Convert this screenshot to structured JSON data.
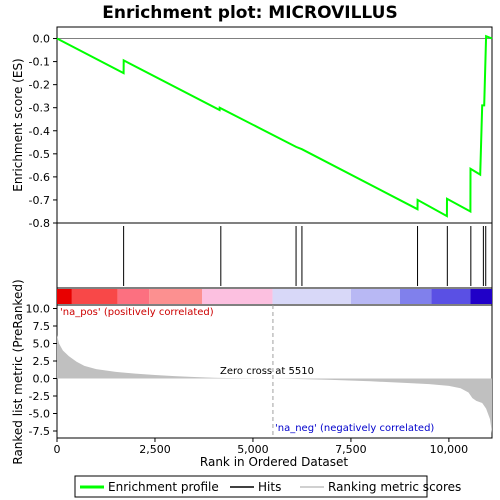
{
  "chart_data": [
    {
      "type": "line",
      "title": "Enrichment plot: MICROVILLUS",
      "ylabel": "Enrichment score (ES)",
      "xlim": [
        0,
        11100
      ],
      "ylim": [
        -0.8,
        0.05
      ],
      "yticks": [
        0.0,
        -0.1,
        -0.2,
        -0.3,
        -0.4,
        -0.5,
        -0.6,
        -0.7,
        -0.8
      ],
      "series": [
        {
          "name": "Enrichment profile",
          "color": "#00ff00",
          "x": [
            0,
            1700,
            1701,
            4150,
            4151,
            6100,
            6250,
            9200,
            9201,
            9950,
            9951,
            10550,
            10551,
            10800,
            10850,
            10900,
            10950,
            11100
          ],
          "y": [
            0.0,
            -0.15,
            -0.095,
            -0.31,
            -0.3,
            -0.47,
            -0.48,
            -0.74,
            -0.7,
            -0.77,
            -0.695,
            -0.75,
            -0.565,
            -0.59,
            -0.29,
            -0.29,
            0.01,
            0.0
          ]
        }
      ],
      "grid": false
    },
    {
      "type": "hits",
      "xlim": [
        0,
        11100
      ],
      "hits": [
        1700,
        4180,
        6100,
        6250,
        9200,
        9960,
        10560,
        10880,
        10940
      ],
      "color": "#000000"
    },
    {
      "type": "heatbar",
      "xlim": [
        0,
        11100
      ],
      "segments": [
        {
          "x0": 0,
          "x1": 380,
          "color": "#e80000"
        },
        {
          "x0": 380,
          "x1": 1550,
          "color": "#f84848"
        },
        {
          "x0": 1550,
          "x1": 2350,
          "color": "#fc7080"
        },
        {
          "x0": 2350,
          "x1": 3700,
          "color": "#fc9090"
        },
        {
          "x0": 3700,
          "x1": 5500,
          "color": "#fcc0e0"
        },
        {
          "x0": 5500,
          "x1": 7500,
          "color": "#d8d8f8"
        },
        {
          "x0": 7500,
          "x1": 8750,
          "color": "#b8b8f4"
        },
        {
          "x0": 8750,
          "x1": 9550,
          "color": "#8080ec"
        },
        {
          "x0": 9550,
          "x1": 10550,
          "color": "#5a50e4"
        },
        {
          "x0": 10550,
          "x1": 11100,
          "color": "#2000c8"
        }
      ]
    },
    {
      "type": "area",
      "ylabel": "Ranked list metric (PreRanked)",
      "xlabel": "Rank in Ordered Dataset",
      "xlim": [
        0,
        11100
      ],
      "ylim": [
        -8.5,
        10.5
      ],
      "xticks": [
        0,
        2500,
        5000,
        7500,
        10000
      ],
      "xtick_labels": [
        "0",
        "2,500",
        "5,000",
        "7,500",
        "10,000"
      ],
      "yticks": [
        10.0,
        7.5,
        5.0,
        2.5,
        0.0,
        -2.5,
        -5.0,
        -7.5
      ],
      "yticks_labels": [
        "10.0",
        "7.5",
        "5.0",
        "2.5",
        "0.0",
        "-2.5",
        "-5.0",
        "-7.5"
      ],
      "x": [
        0,
        50,
        150,
        300,
        500,
        700,
        1000,
        1500,
        2000,
        2500,
        3000,
        3500,
        4000,
        4500,
        5000,
        5510,
        6000,
        7000,
        8000,
        9000,
        9500,
        10000,
        10300,
        10500,
        10600,
        10700,
        10850,
        10950,
        11050,
        11100
      ],
      "y": [
        6.2,
        5.0,
        4.0,
        3.2,
        2.4,
        1.8,
        1.35,
        0.95,
        0.7,
        0.5,
        0.35,
        0.22,
        0.12,
        0.06,
        0.02,
        0.0,
        -0.05,
        -0.2,
        -0.4,
        -0.65,
        -0.8,
        -1.05,
        -1.4,
        -2.0,
        -2.8,
        -3.2,
        -3.5,
        -4.3,
        -5.8,
        -7.8
      ],
      "color": "#c0c0c0",
      "zero_cross_label": "Zero cross at 5510",
      "zero_cross_x": 5510,
      "pos_label": "'na_pos' (positively correlated)",
      "neg_label": "'na_neg' (negatively correlated)"
    }
  ],
  "legend": {
    "items": [
      {
        "label": "Enrichment profile",
        "color": "#00ff00"
      },
      {
        "label": "Hits",
        "color": "#000000"
      },
      {
        "label": "Ranking metric scores",
        "color": "#c0c0c0"
      }
    ]
  }
}
